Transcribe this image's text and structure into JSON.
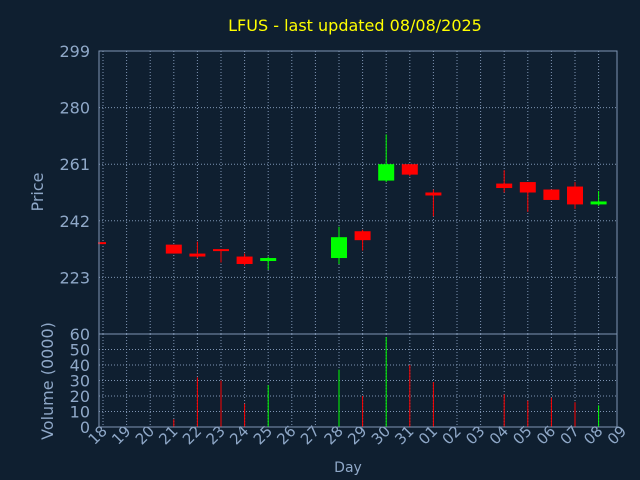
{
  "chart_data": {
    "type": "candlestick",
    "title": "LFUS - last updated 08/08/2025",
    "xlabel": "Day",
    "ylabel": "Price",
    "volume_label": "Volume (0000)",
    "price_range": [
      204,
      299
    ],
    "price_ticks": [
      299,
      280,
      261,
      242,
      223
    ],
    "volume_range": [
      0,
      60
    ],
    "volume_ticks": [
      60,
      50,
      40,
      30,
      20,
      10,
      0
    ],
    "x_labels": [
      "18",
      "19",
      "20",
      "21",
      "22",
      "23",
      "24",
      "25",
      "26",
      "27",
      "28",
      "29",
      "30",
      "31",
      "01",
      "02",
      "03",
      "04",
      "05",
      "06",
      "07",
      "08",
      "09"
    ],
    "grid": true,
    "colors": {
      "background": "#0f1f30",
      "plot": "#0f1f30",
      "frame": "#7f95b3",
      "grid": "#7f95b3",
      "title": "#ffff00",
      "label": "#8fa8c8",
      "up": "#00ff00",
      "down": "#ff0000"
    },
    "candles": [
      {
        "day": "18",
        "open": 234.5,
        "close": 234.5,
        "high": 234.5,
        "low": 234.5,
        "volume": 0
      },
      {
        "day": "21",
        "open": 234.0,
        "close": 231.0,
        "high": 234.0,
        "low": 231.0,
        "volume": 5
      },
      {
        "day": "22",
        "open": 231.0,
        "close": 230.0,
        "high": 235.0,
        "low": 229.5,
        "volume": 32
      },
      {
        "day": "23",
        "open": 232.5,
        "close": 232.0,
        "high": 232.5,
        "low": 228.0,
        "volume": 30
      },
      {
        "day": "24",
        "open": 230.0,
        "close": 227.5,
        "high": 231.0,
        "low": 227.0,
        "volume": 15
      },
      {
        "day": "25",
        "open": 228.5,
        "close": 229.5,
        "high": 230.0,
        "low": 225.5,
        "volume": 27
      },
      {
        "day": "28",
        "open": 229.5,
        "close": 236.5,
        "high": 240.0,
        "low": 227.5,
        "volume": 37
      },
      {
        "day": "29",
        "open": 238.5,
        "close": 235.5,
        "high": 239.0,
        "low": 232.0,
        "volume": 20
      },
      {
        "day": "30",
        "open": 255.5,
        "close": 261.0,
        "high": 271.0,
        "low": 255.0,
        "volume": 58
      },
      {
        "day": "31",
        "open": 261.0,
        "close": 257.5,
        "high": 261.0,
        "low": 257.0,
        "volume": 40
      },
      {
        "day": "01",
        "open": 251.5,
        "close": 250.5,
        "high": 252.5,
        "low": 243.5,
        "volume": 29
      },
      {
        "day": "04",
        "open": 254.5,
        "close": 253.0,
        "high": 259.0,
        "low": 251.5,
        "volume": 21
      },
      {
        "day": "05",
        "open": 255.0,
        "close": 251.5,
        "high": 255.0,
        "low": 245.0,
        "volume": 17
      },
      {
        "day": "06",
        "open": 252.5,
        "close": 249.0,
        "high": 252.5,
        "low": 249.0,
        "volume": 19
      },
      {
        "day": "07",
        "open": 253.5,
        "close": 247.5,
        "high": 255.0,
        "low": 246.0,
        "volume": 16
      },
      {
        "day": "08",
        "open": 247.5,
        "close": 248.5,
        "high": 252.0,
        "low": 247.0,
        "volume": 14
      }
    ]
  }
}
